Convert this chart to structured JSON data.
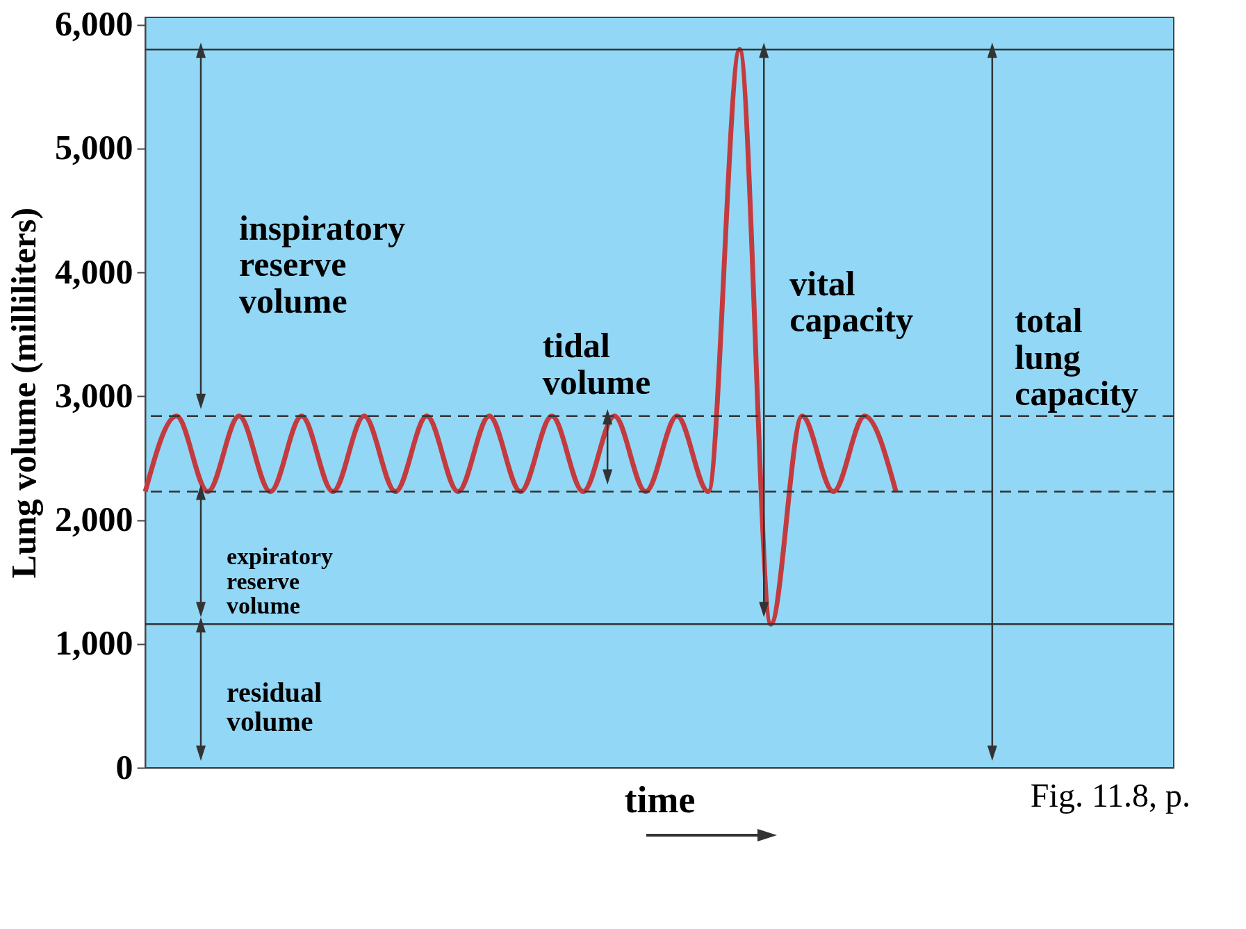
{
  "chart_data": {
    "type": "line",
    "ylabel": "Lung volume (milliliters)",
    "xlabel": "time",
    "categories": [
      null,
      null,
      null,
      null,
      null,
      null,
      null,
      null,
      null,
      null,
      null,
      null,
      null,
      null,
      null,
      null,
      null,
      null,
      null,
      null,
      null,
      null,
      null,
      null,
      null
    ],
    "series": [
      {
        "color": "#c33b3f",
        "values": [
          2230,
          2840,
          2230,
          2840,
          2230,
          2840,
          2230,
          2840,
          2230,
          2840,
          2230,
          2840,
          2230,
          2840,
          2230,
          2840,
          2230,
          2840,
          2230,
          5800,
          1160,
          2840,
          2230,
          2840,
          2230
        ]
      }
    ],
    "ylim": [
      0,
      6060
    ],
    "yticks": [
      {
        "value": 0,
        "label": "0"
      },
      {
        "value": 1000,
        "label": "1,000"
      },
      {
        "value": 2000,
        "label": "2,000"
      },
      {
        "value": 3000,
        "label": "3,000"
      },
      {
        "value": 4000,
        "label": "4,000"
      },
      {
        "value": 5000,
        "label": "5,000"
      },
      {
        "value": 6000,
        "label": "6,000"
      }
    ],
    "tick_labels": "y",
    "grid": false,
    "marker": "none",
    "line_style": "solid",
    "ref_lines": [
      {
        "axis": "y",
        "value": 5800,
        "color": "#333333",
        "line_style": "solid"
      },
      {
        "axis": "y",
        "value": 2840,
        "color": "#333333",
        "line_style": "dashed"
      },
      {
        "axis": "y",
        "value": 2230,
        "color": "#333333",
        "line_style": "dashed"
      },
      {
        "axis": "y",
        "value": 1160,
        "color": "#333333",
        "line_style": "solid"
      }
    ],
    "annotations": [
      "inspiratory reserve volume",
      "tidal volume",
      "vital capacity",
      "total lung capacity",
      "expiratory reserve volume",
      "residual volume",
      "Fig. 11.8, p."
    ]
  }
}
